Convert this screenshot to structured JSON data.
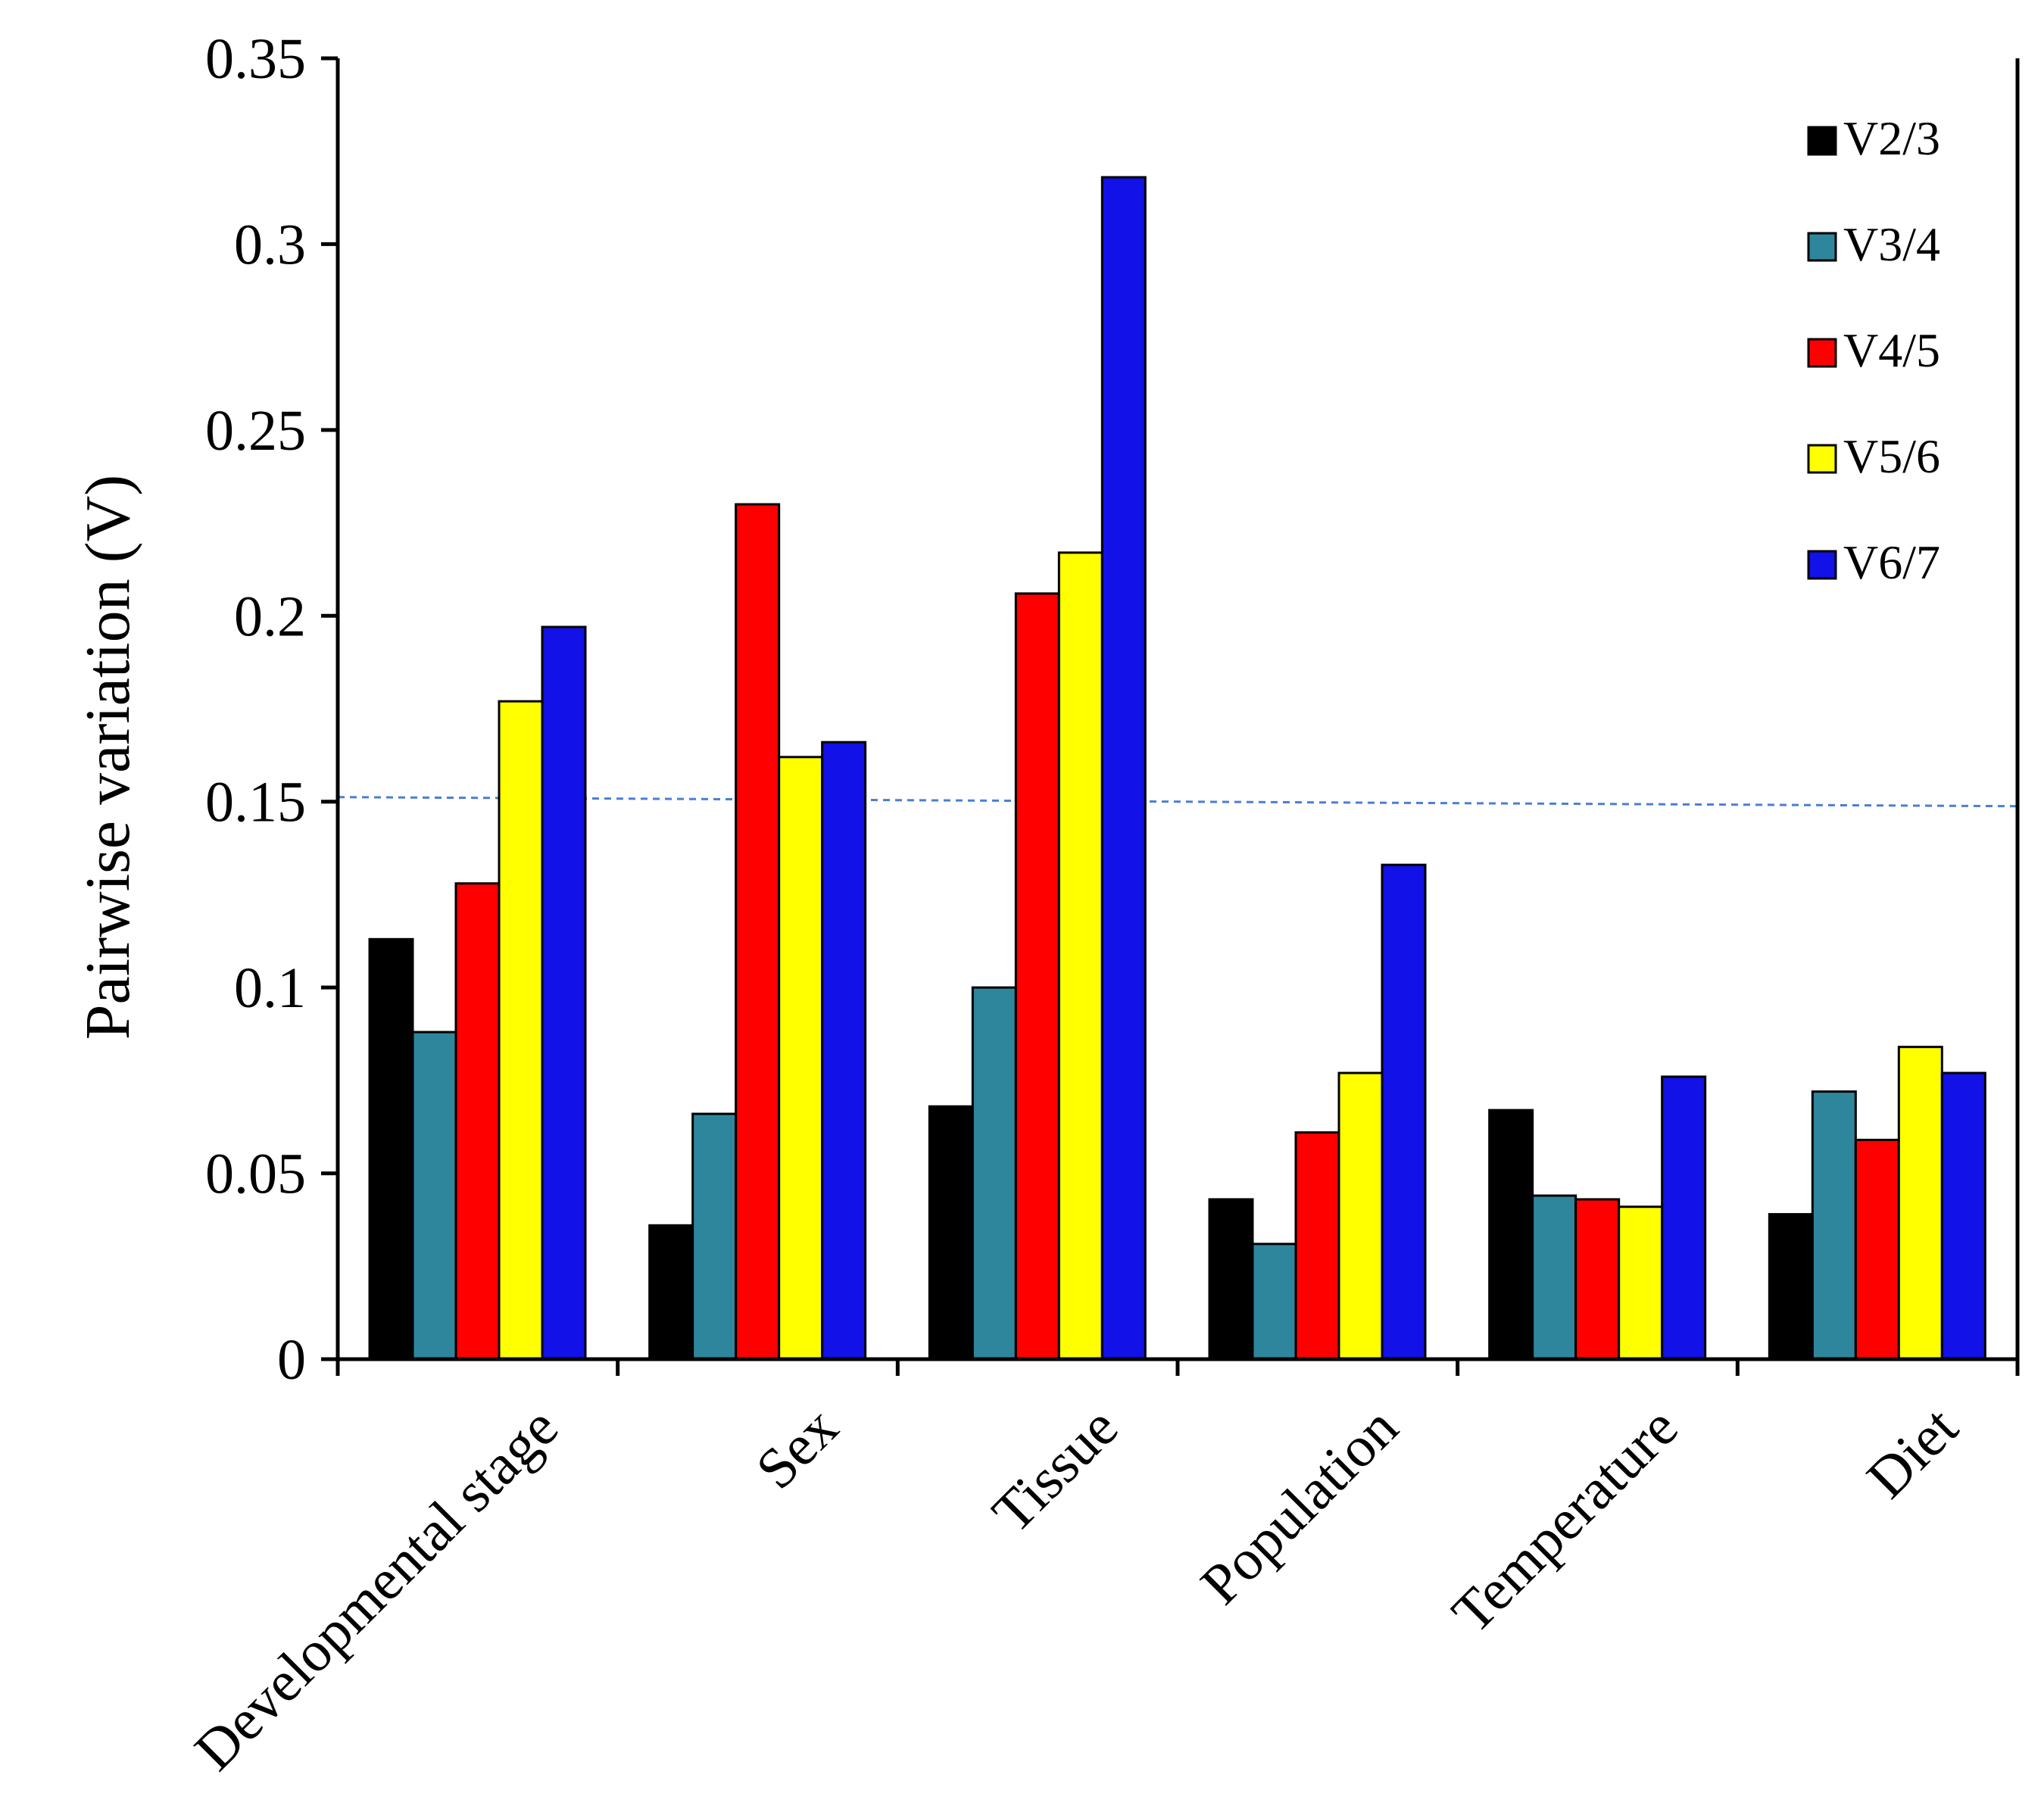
{
  "chart_data": {
    "type": "bar",
    "title": "",
    "xlabel": "",
    "ylabel": "Pairwise variation (V)",
    "ylim": [
      0,
      0.35
    ],
    "yticks": [
      0,
      0.05,
      0.1,
      0.15,
      0.2,
      0.25,
      0.3,
      0.35
    ],
    "ytick_labels": [
      "0",
      "0.05",
      "0.1",
      "0.15",
      "0.2",
      "0.25",
      "0.3",
      "0.35"
    ],
    "categories": [
      "Developmental stage",
      "Sex",
      "Tissue",
      "Population",
      "Temperature",
      "Diet"
    ],
    "series": [
      {
        "name": "V2/3",
        "color": "#000000",
        "values": [
          0.113,
          0.036,
          0.068,
          0.043,
          0.067,
          0.039
        ]
      },
      {
        "name": "V3/4",
        "color": "#2e869c",
        "values": [
          0.088,
          0.066,
          0.1,
          0.031,
          0.044,
          0.072
        ]
      },
      {
        "name": "V4/5",
        "color": "#ff0000",
        "values": [
          0.128,
          0.23,
          0.206,
          0.061,
          0.043,
          0.059
        ]
      },
      {
        "name": "V5/6",
        "color": "#ffff00",
        "values": [
          0.177,
          0.162,
          0.217,
          0.077,
          0.041,
          0.084
        ]
      },
      {
        "name": "V6/7",
        "color": "#1111e8",
        "values": [
          0.197,
          0.166,
          0.318,
          0.133,
          0.076,
          0.077
        ]
      }
    ],
    "reference_line": {
      "value": 0.15,
      "style": "dashed",
      "color": "#4a7fd4"
    },
    "legend": {
      "position": "top-right"
    },
    "grid": false
  }
}
